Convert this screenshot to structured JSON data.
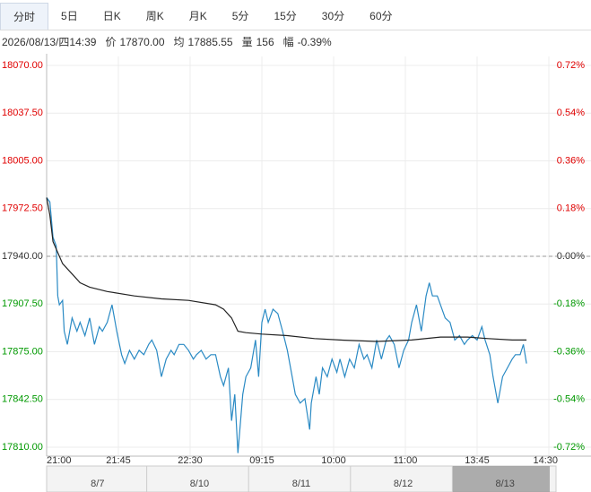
{
  "tabs": [
    "分时",
    "5日",
    "日K",
    "周K",
    "月K",
    "5分",
    "15分",
    "30分",
    "60分"
  ],
  "active_tab": 0,
  "info": [
    {
      "label": "",
      "value": "2026/08/13/四14:39"
    },
    {
      "label": "价",
      "value": "17870.00"
    },
    {
      "label": "均",
      "value": "17885.55"
    },
    {
      "label": "量",
      "value": "156"
    },
    {
      "label": "幅",
      "value": "-0.39%"
    }
  ],
  "navigator": {
    "dates": [
      "8/7",
      "8/10",
      "8/11",
      "8/12",
      "8/13"
    ],
    "selected": 4
  },
  "chart_data": {
    "type": "line",
    "xlim": [
      0,
      315
    ],
    "xticks": [
      {
        "value": 0,
        "label": "21:00"
      },
      {
        "value": 45,
        "label": "21:45"
      },
      {
        "value": 90,
        "label": "22:30"
      },
      {
        "value": 135,
        "label": "09:15"
      },
      {
        "value": 180,
        "label": "10:00"
      },
      {
        "value": 225,
        "label": "11:00"
      },
      {
        "value": 270,
        "label": "13:45"
      },
      {
        "value": 315,
        "label": "14:30"
      }
    ],
    "ylim": [
      17810,
      18070
    ],
    "yticks": [
      {
        "value": 18070,
        "label": "18070.00"
      },
      {
        "value": 18037.5,
        "label": "18037.50"
      },
      {
        "value": 18005,
        "label": "18005.00"
      },
      {
        "value": 17972.5,
        "label": "17972.50"
      },
      {
        "value": 17940,
        "label": "17940.00"
      },
      {
        "value": 17907.5,
        "label": "17907.50"
      },
      {
        "value": 17875,
        "label": "17875.00"
      },
      {
        "value": 17842.5,
        "label": "17842.50"
      },
      {
        "value": 17810,
        "label": "17810.00"
      }
    ],
    "y2lim": [
      -0.72,
      0.72
    ],
    "y2ticks": [
      {
        "value": 0.72,
        "label": "0.72%"
      },
      {
        "value": 0.54,
        "label": "0.54%"
      },
      {
        "value": 0.36,
        "label": "0.36%"
      },
      {
        "value": 0.18,
        "label": "0.18%"
      },
      {
        "value": 0,
        "label": "0.00%"
      },
      {
        "value": -0.18,
        "label": "-0.18%"
      },
      {
        "value": -0.36,
        "label": "-0.36%"
      },
      {
        "value": -0.54,
        "label": "-0.54%"
      },
      {
        "value": -0.72,
        "label": "-0.72%"
      }
    ],
    "reference_line": 17940,
    "up_color": "#e00000",
    "down_color": "#009900",
    "flat_color": "#333333",
    "grid": true,
    "series": [
      {
        "color": "#2a8ac4",
        "x": [
          0,
          2,
          4,
          6,
          7,
          8,
          10,
          11,
          13,
          16,
          19,
          21,
          24,
          27,
          30,
          33,
          35,
          38,
          41,
          44,
          47,
          49,
          52,
          55,
          58,
          61,
          64,
          66,
          69,
          72,
          75,
          78,
          80,
          83,
          86,
          89,
          92,
          94,
          97,
          100,
          103,
          106,
          109,
          111,
          114,
          116,
          118,
          120,
          123,
          125,
          128,
          131,
          133,
          135,
          137,
          139,
          142,
          145,
          148,
          151,
          154,
          156,
          159,
          162,
          165,
          166,
          169,
          171,
          173,
          176,
          179,
          182,
          184,
          187,
          190,
          193,
          196,
          199,
          201,
          204,
          207,
          210,
          213,
          215,
          218,
          221,
          224,
          227,
          229,
          232,
          235,
          238,
          240,
          242,
          245,
          247,
          250,
          253,
          256,
          259,
          262,
          264,
          267,
          270,
          273,
          275,
          278,
          280,
          283,
          286,
          289,
          292,
          294,
          297,
          299,
          301
        ],
        "values": [
          17980,
          17977,
          17953,
          17947,
          17913,
          17907,
          17910,
          17889,
          17880,
          17898,
          17889,
          17895,
          17886,
          17898,
          17880,
          17892,
          17889,
          17895,
          17907,
          17889,
          17873,
          17867,
          17876,
          17870,
          17876,
          17873,
          17880,
          17883,
          17876,
          17858,
          17870,
          17876,
          17873,
          17880,
          17880,
          17876,
          17870,
          17873,
          17876,
          17870,
          17873,
          17873,
          17858,
          17852,
          17864,
          17828,
          17846,
          17806,
          17846,
          17858,
          17864,
          17883,
          17858,
          17895,
          17904,
          17895,
          17904,
          17901,
          17889,
          17876,
          17858,
          17846,
          17840,
          17843,
          17822,
          17840,
          17858,
          17846,
          17864,
          17858,
          17870,
          17861,
          17870,
          17858,
          17870,
          17864,
          17880,
          17870,
          17873,
          17864,
          17883,
          17870,
          17883,
          17886,
          17880,
          17864,
          17876,
          17883,
          17895,
          17907,
          17889,
          17913,
          17922,
          17913,
          17913,
          17907,
          17898,
          17895,
          17883,
          17886,
          17880,
          17883,
          17886,
          17883,
          17892,
          17883,
          17873,
          17858,
          17840,
          17858,
          17864,
          17870,
          17873,
          17873,
          17880,
          17867
        ]
      },
      {
        "color": "#222222",
        "x": [
          0,
          2,
          4,
          10,
          16,
          21,
          27,
          38,
          55,
          72,
          89,
          106,
          111,
          116,
          120,
          125,
          135,
          151,
          168,
          184,
          207,
          229,
          247,
          264,
          277,
          292,
          301
        ],
        "values": [
          17980,
          17968,
          17950,
          17935,
          17928,
          17922,
          17919,
          17916,
          17913,
          17911,
          17910,
          17907,
          17904,
          17898,
          17889,
          17888,
          17887,
          17886,
          17884,
          17883,
          17882,
          17883,
          17885,
          17885,
          17884,
          17883,
          17883
        ]
      }
    ]
  }
}
